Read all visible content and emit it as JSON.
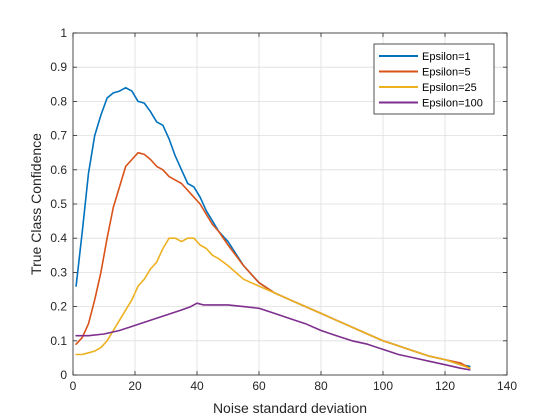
{
  "chart_data": {
    "type": "line",
    "title": "",
    "xlabel": "Noise standard deviation",
    "ylabel": "True Class Confidence",
    "xlim": [
      0,
      140
    ],
    "ylim": [
      0,
      1
    ],
    "xticks": [
      0,
      20,
      40,
      60,
      80,
      100,
      120,
      140
    ],
    "yticks": [
      0,
      0.1,
      0.2,
      0.3,
      0.4,
      0.5,
      0.6,
      0.7,
      0.8,
      0.9,
      1
    ],
    "xtick_labels": [
      "0",
      "20",
      "40",
      "60",
      "80",
      "100",
      "120",
      "140"
    ],
    "ytick_labels": [
      "0",
      "0.1",
      "0.2",
      "0.3",
      "0.4",
      "0.5",
      "0.6",
      "0.7",
      "0.8",
      "0.9",
      "1"
    ],
    "grid": true,
    "legend_position": "top-right",
    "series": [
      {
        "name": "Epsilon=1",
        "color": "#0072BD",
        "x": [
          1,
          3,
          5,
          7,
          9,
          11,
          13,
          15,
          17,
          19,
          21,
          23,
          25,
          27,
          29,
          31,
          33,
          35,
          37,
          39,
          41,
          43,
          45,
          47,
          50,
          55,
          60,
          65,
          70,
          75,
          80,
          85,
          90,
          95,
          100,
          105,
          110,
          115,
          120,
          125,
          128
        ],
        "y": [
          0.26,
          0.42,
          0.59,
          0.7,
          0.76,
          0.81,
          0.825,
          0.83,
          0.84,
          0.83,
          0.8,
          0.795,
          0.77,
          0.74,
          0.73,
          0.69,
          0.64,
          0.6,
          0.56,
          0.55,
          0.52,
          0.48,
          0.45,
          0.42,
          0.39,
          0.32,
          0.27,
          0.24,
          0.22,
          0.2,
          0.18,
          0.16,
          0.14,
          0.12,
          0.1,
          0.085,
          0.07,
          0.055,
          0.045,
          0.03,
          0.025
        ]
      },
      {
        "name": "Epsilon=5",
        "color": "#D95319",
        "x": [
          1,
          3,
          5,
          7,
          9,
          11,
          13,
          15,
          17,
          19,
          21,
          23,
          25,
          27,
          29,
          31,
          33,
          35,
          37,
          39,
          41,
          43,
          45,
          47,
          50,
          55,
          60,
          65,
          70,
          75,
          80,
          85,
          90,
          95,
          100,
          105,
          110,
          115,
          120,
          125,
          128
        ],
        "y": [
          0.09,
          0.11,
          0.15,
          0.22,
          0.3,
          0.4,
          0.49,
          0.55,
          0.61,
          0.63,
          0.65,
          0.645,
          0.63,
          0.61,
          0.6,
          0.58,
          0.57,
          0.56,
          0.54,
          0.52,
          0.5,
          0.47,
          0.44,
          0.42,
          0.38,
          0.32,
          0.27,
          0.24,
          0.22,
          0.2,
          0.18,
          0.16,
          0.14,
          0.12,
          0.1,
          0.085,
          0.07,
          0.055,
          0.045,
          0.035,
          0.02
        ]
      },
      {
        "name": "Epsilon=25",
        "color": "#EDB120",
        "x": [
          1,
          3,
          5,
          7,
          9,
          11,
          13,
          15,
          17,
          19,
          21,
          23,
          25,
          27,
          29,
          31,
          33,
          35,
          37,
          39,
          41,
          43,
          45,
          47,
          50,
          55,
          60,
          65,
          70,
          75,
          80,
          85,
          90,
          95,
          100,
          105,
          110,
          115,
          120,
          125,
          128
        ],
        "y": [
          0.06,
          0.06,
          0.065,
          0.07,
          0.08,
          0.1,
          0.13,
          0.16,
          0.19,
          0.22,
          0.26,
          0.28,
          0.31,
          0.33,
          0.37,
          0.4,
          0.4,
          0.39,
          0.4,
          0.4,
          0.38,
          0.37,
          0.35,
          0.34,
          0.32,
          0.28,
          0.26,
          0.24,
          0.22,
          0.2,
          0.18,
          0.16,
          0.14,
          0.12,
          0.1,
          0.085,
          0.07,
          0.055,
          0.045,
          0.03,
          0.02
        ]
      },
      {
        "name": "Epsilon=100",
        "color": "#7E2F8E",
        "x": [
          1,
          5,
          10,
          15,
          20,
          25,
          30,
          35,
          38,
          40,
          42,
          45,
          50,
          55,
          60,
          65,
          70,
          75,
          80,
          85,
          90,
          95,
          100,
          105,
          110,
          115,
          120,
          125,
          128
        ],
        "y": [
          0.115,
          0.115,
          0.12,
          0.13,
          0.145,
          0.16,
          0.175,
          0.19,
          0.2,
          0.21,
          0.205,
          0.205,
          0.205,
          0.2,
          0.195,
          0.18,
          0.165,
          0.15,
          0.13,
          0.115,
          0.1,
          0.09,
          0.075,
          0.06,
          0.05,
          0.04,
          0.03,
          0.02,
          0.015
        ]
      }
    ]
  }
}
